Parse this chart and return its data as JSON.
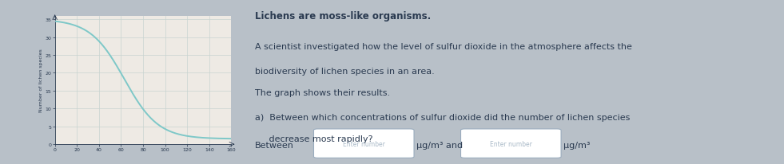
{
  "title_line1": "Lichens are moss-like organisms.",
  "title_line2": "A scientist investigated how the level of sulfur dioxide in the atmosphere affects the",
  "title_line3": "biodiversity of lichen species in an area.",
  "title_line4": "The graph shows their results.",
  "question_a1": "a)  Between which concentrations of sulfur dioxide did the number of lichen species",
  "question_a2": "     decrease most rapidly?",
  "between_label": "Between",
  "unit": "μg/m³",
  "and_text": "and",
  "enter_number": "Enter number",
  "ylabel": "Number of lichen species",
  "xlim": [
    0,
    160
  ],
  "ylim": [
    0,
    36
  ],
  "xticks": [
    0,
    20,
    40,
    60,
    80,
    100,
    120,
    140,
    160
  ],
  "yticks": [
    0,
    5,
    10,
    15,
    20,
    25,
    30,
    35
  ],
  "curve_color": "#7ec8c8",
  "grid_color": "#c8d4d0",
  "chart_bg": "#eeeae4",
  "outer_bg": "#b8c0c8",
  "dark_strip_color": "#1a1210",
  "text_color": "#2a3a50",
  "box_border": "#9aacbe",
  "box_placeholder": "#aabac8"
}
